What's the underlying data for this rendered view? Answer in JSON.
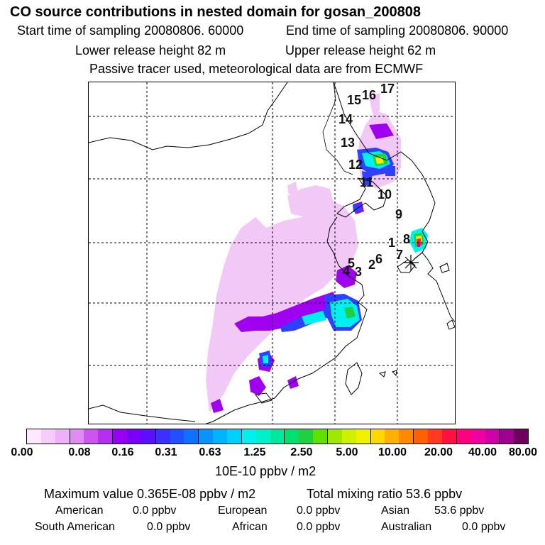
{
  "title": "CO  source contributions in nested domain for gosan_200808",
  "start_time": "Start time of sampling 20080806. 60000",
  "end_time": "End time of sampling 20080806. 90000",
  "lower_release": "Lower release height   82 m",
  "upper_release": "Upper release height   62 m",
  "tracer_note": "Passive tracer used, meteorological data are from ECMWF",
  "map": {
    "station_labels": [
      "15",
      "16",
      "17",
      "14",
      "13",
      "12",
      "11",
      "10",
      "9",
      "1",
      "8",
      "7",
      "5",
      "2",
      "6",
      "4",
      "3"
    ],
    "receptor_marker": "asterisk",
    "colors": {
      "light_purple": "#f2c8f6",
      "purple": "#a000f0",
      "blue": "#3040ff",
      "cyan": "#00f0f0",
      "green": "#20d040",
      "yellow": "#f0f000",
      "red": "#ff2040",
      "magenta": "#e0007a"
    }
  },
  "colorbar": {
    "colors": [
      "#fde8fe",
      "#f6cdfa",
      "#eeb0f8",
      "#e08cf4",
      "#cc55f0",
      "#b52ff0",
      "#9800f0",
      "#7a00f8",
      "#5a10ff",
      "#3a30ff",
      "#2050ff",
      "#1070ff",
      "#0a92ff",
      "#00b4ff",
      "#00d0ff",
      "#00f0f0",
      "#00f0c8",
      "#00e8a0",
      "#00e070",
      "#20d040",
      "#60e000",
      "#a0e800",
      "#d0f000",
      "#f0f000",
      "#ffd800",
      "#ffb000",
      "#ff8a00",
      "#ff6000",
      "#ff3a20",
      "#ff1040",
      "#ff0080",
      "#f000a0",
      "#d000a8",
      "#a00090",
      "#700060"
    ],
    "ticks": [
      "0.00",
      "0.08",
      "0.16",
      "0.31",
      "0.63",
      "1.25",
      "2.50",
      "5.00",
      "10.00",
      "20.00",
      "40.00",
      "80.00"
    ],
    "unit": "10E-10 ppbv / m2"
  },
  "footer": {
    "max_value": "Maximum value  0.365E-08 ppbv / m2",
    "total_mixing": "Total mixing ratio       53.6 ppbv",
    "american_label": "American",
    "american_value": "0.0 ppbv",
    "european_label": "European",
    "european_value": "0.0 ppbv",
    "asian_label": "Asian",
    "asian_value": "53.6 ppbv",
    "south_american_label": "South American",
    "south_american_value": "0.0 ppbv",
    "african_label": "African",
    "african_value": "0.0 ppbv",
    "australian_label": "Australian",
    "australian_value": "0.0 ppbv"
  }
}
